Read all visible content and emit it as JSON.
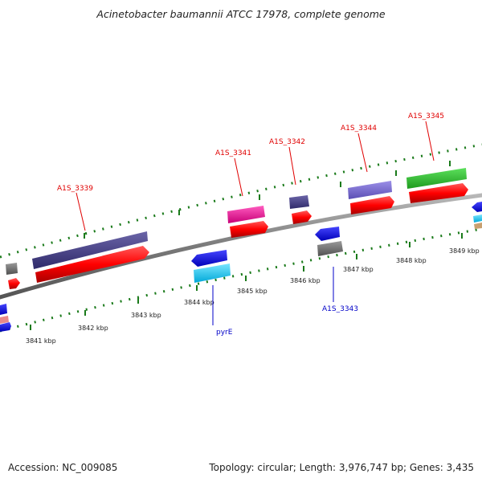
{
  "title": "Acinetobacter baumannii ATCC 17978, complete genome",
  "footer": {
    "accession": "Accession: NC_009085",
    "stats": "Topology: circular; Length: 3,976,747 bp; Genes: 3,435"
  },
  "tick_labels": [
    "3841 kbp",
    "3842 kbp",
    "3843 kbp",
    "3844 kbp",
    "3845 kbp",
    "3846 kbp",
    "3847 kbp",
    "3848 kbp",
    "3849 kbp"
  ],
  "gene_labels": {
    "forward": [
      "A1S_3339",
      "A1S_3341",
      "A1S_3342",
      "A1S_3344",
      "A1S_3345"
    ],
    "reverse": [
      "pyrE",
      "A1S_3343"
    ]
  },
  "colors": {
    "backbone": "#808080",
    "cds": "#ff0000",
    "tick": "#1a7a1a",
    "forward_label": "#e00000",
    "reverse_label": "#0000c8"
  }
}
